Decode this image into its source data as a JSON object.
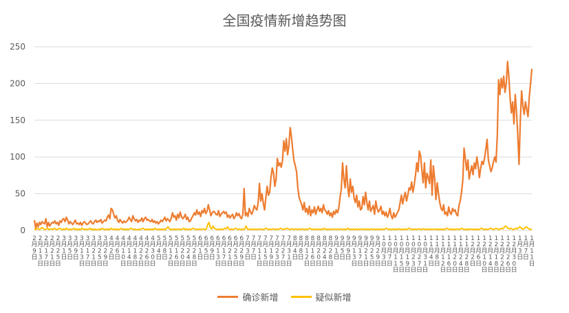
{
  "chart_data": {
    "type": "line",
    "title": "全国疫情新增趋势图",
    "xlabel": "",
    "ylabel": "",
    "ylim": [
      0,
      250
    ],
    "yticks": [
      0,
      50,
      100,
      150,
      200,
      250
    ],
    "grid": true,
    "legend_position": "bottom",
    "x_tick_labels": [
      "2月9日",
      "2月13日",
      "2月17日",
      "2月21日",
      "2月25日",
      "3月1日",
      "3月5日",
      "3月9日",
      "3月13日",
      "3月17日",
      "3月21日",
      "3月25日",
      "3月29日",
      "4月2日",
      "4月6日",
      "4月10日",
      "4月14日",
      "4月18日",
      "4月22日",
      "4月26日",
      "4月30日",
      "5月4日",
      "5月8日",
      "5月12日",
      "5月16日",
      "5月20日",
      "5月24日",
      "5月28日",
      "6月1日",
      "6月5日",
      "6月9日",
      "6月13日",
      "6月17日",
      "6月21日",
      "6月25日",
      "6月29日",
      "7月3日",
      "7月7日",
      "7月11日",
      "7月15日",
      "7月19日",
      "7月23日",
      "7月27日",
      "7月31日",
      "8月4日",
      "8月8日",
      "8月12日",
      "8月16日",
      "8月20日",
      "8月24日",
      "8月28日",
      "9月1日",
      "9月5日",
      "9月9日",
      "9月13日",
      "9月17日",
      "9月21日",
      "9月25日",
      "9月29日",
      "10月3日",
      "10月7日",
      "10月11日",
      "10月15日",
      "10月19日",
      "10月23日",
      "10月27日",
      "10月31日",
      "11月4日",
      "11月8日",
      "11月12日",
      "11月16日",
      "11月20日",
      "11月24日",
      "11月28日",
      "12月2日",
      "12月6日",
      "12月10日",
      "12月14日",
      "12月18日",
      "12月22日",
      "12月26日",
      "12月30日",
      "1月3日",
      "1月7日",
      "1月11日"
    ],
    "series": [
      {
        "name": "确诊新增",
        "color": "#ED7D31",
        "values": [
          14,
          3,
          10,
          5,
          11,
          8,
          12,
          10,
          9,
          16,
          5,
          11,
          6,
          9,
          11,
          10,
          13,
          9,
          11,
          7,
          13,
          11,
          15,
          16,
          12,
          18,
          14,
          9,
          12,
          10,
          8,
          11,
          14,
          9,
          10,
          8,
          11,
          7,
          10,
          12,
          10,
          8,
          9,
          11,
          13,
          10,
          9,
          12,
          14,
          11,
          13,
          12,
          15,
          10,
          12,
          14,
          13,
          18,
          21,
          16,
          30,
          28,
          22,
          17,
          20,
          14,
          11,
          15,
          12,
          10,
          13,
          11,
          12,
          14,
          18,
          15,
          12,
          20,
          16,
          13,
          15,
          11,
          14,
          13,
          17,
          12,
          16,
          18,
          14,
          15,
          13,
          12,
          15,
          11,
          13,
          10,
          12,
          9,
          11,
          14,
          12,
          15,
          18,
          13,
          16,
          14,
          12,
          17,
          24,
          18,
          20,
          14,
          22,
          17,
          25,
          19,
          16,
          18,
          22,
          15,
          18,
          12,
          13,
          17,
          20,
          24,
          21,
          28,
          22,
          25,
          19,
          27,
          24,
          30,
          23,
          26,
          35,
          28,
          20,
          24,
          26,
          25,
          22,
          21,
          27,
          19,
          22,
          24,
          26,
          23,
          25,
          18,
          21,
          17,
          20,
          22,
          16,
          19,
          24,
          20,
          23,
          18,
          16,
          22,
          57,
          20,
          24,
          19,
          30,
          25,
          22,
          27,
          34,
          30,
          28,
          38,
          64,
          40,
          50,
          37,
          28,
          45,
          60,
          48,
          52,
          72,
          85,
          78,
          60,
          70,
          98,
          88,
          92,
          86,
          95,
          122,
          108,
          125,
          103,
          115,
          140,
          128,
          110,
          95,
          88,
          80,
          58,
          45,
          40,
          35,
          28,
          38,
          25,
          30,
          22,
          33,
          20,
          28,
          24,
          32,
          22,
          28,
          33,
          26,
          30,
          24,
          35,
          28,
          26,
          22,
          27,
          20,
          24,
          18,
          26,
          22,
          28,
          24,
          30,
          45,
          56,
          92,
          70,
          58,
          88,
          60,
          46,
          70,
          52,
          60,
          44,
          38,
          48,
          32,
          40,
          28,
          30,
          46,
          35,
          52,
          38,
          28,
          40,
          26,
          30,
          34,
          22,
          40,
          30,
          25,
          28,
          33,
          22,
          26,
          20,
          25,
          18,
          22,
          30,
          20,
          16,
          24,
          18,
          21,
          25,
          28,
          38,
          48,
          36,
          45,
          52,
          40,
          48,
          58,
          55,
          66,
          52,
          62,
          75,
          92,
          80,
          108,
          102,
          82,
          65,
          92,
          58,
          78,
          72,
          64,
          96,
          48,
          88,
          70,
          42,
          65,
          50,
          38,
          30,
          27,
          35,
          22,
          25,
          20,
          32,
          24,
          22,
          30,
          26,
          28,
          22,
          20,
          34,
          40,
          52,
          68,
          112,
          98,
          82,
          96,
          70,
          80,
          88,
          76,
          92,
          84,
          100,
          88,
          72,
          85,
          94,
          90,
          98,
          110,
          124,
          96,
          88,
          80,
          85,
          94,
          100,
          93,
          130,
          205,
          185,
          207,
          194,
          210,
          188,
          200,
          230,
          210,
          180,
          160,
          175,
          145,
          185,
          162,
          130,
          90,
          150,
          190,
          170,
          158,
          175,
          165,
          155,
          182,
          200,
          220
        ]
      },
      {
        "name": "疑似新增",
        "color": "#FFC000",
        "values": [
          2,
          1,
          3,
          2,
          1,
          3,
          4,
          2,
          1,
          2,
          3,
          1,
          2,
          2,
          1,
          3,
          2,
          1,
          2,
          3,
          2,
          1,
          2,
          1,
          3,
          2,
          1,
          2,
          1,
          2,
          3,
          1,
          2,
          1,
          2,
          1,
          3,
          2,
          1,
          2,
          1,
          2,
          3,
          1,
          2,
          1,
          2,
          1,
          1,
          2,
          1,
          3,
          2,
          1,
          2,
          1,
          2,
          1,
          3,
          2,
          1,
          2,
          1,
          2,
          1,
          2,
          3,
          1,
          2,
          1,
          2,
          1,
          2,
          3,
          2,
          1,
          2,
          1,
          1,
          2,
          1,
          2,
          3,
          2,
          1,
          2,
          1,
          2,
          1,
          2,
          1,
          3,
          2,
          1,
          2,
          1,
          2,
          1,
          2,
          1,
          3,
          5,
          2,
          1,
          2,
          1,
          2,
          1,
          2,
          1,
          2,
          1,
          2,
          3,
          1,
          2,
          1,
          2,
          1,
          2,
          3,
          2,
          1,
          2,
          1,
          2,
          1,
          2,
          2,
          1,
          2,
          8,
          11,
          4,
          2,
          6,
          3,
          2,
          1,
          2,
          1,
          2,
          1,
          2,
          3,
          2,
          5,
          2,
          1,
          2,
          1,
          2,
          3,
          2,
          1,
          2,
          1,
          2,
          1,
          2,
          6,
          2,
          1,
          2,
          1,
          2,
          1,
          2,
          1,
          2,
          2,
          1,
          2,
          1,
          2,
          3,
          2,
          1,
          2,
          1,
          2,
          2,
          1,
          2,
          1,
          2,
          3,
          2,
          1,
          2,
          2,
          3,
          2,
          1,
          2,
          2,
          1,
          2,
          2,
          1,
          2,
          1,
          2,
          2,
          1,
          2,
          1,
          2,
          3,
          2,
          1,
          2,
          1,
          2,
          1,
          2,
          1,
          2,
          1,
          3,
          2,
          1,
          2,
          1,
          2,
          1,
          2,
          2,
          1,
          2,
          1,
          2,
          2,
          1,
          2,
          1,
          2,
          3,
          1,
          2,
          1,
          2,
          1,
          2,
          1,
          2,
          1,
          2,
          2,
          1,
          2,
          1,
          2,
          1,
          2,
          2,
          1,
          2,
          1,
          2,
          1,
          2,
          1,
          2,
          1,
          2,
          3,
          2,
          1,
          2,
          1,
          2,
          1,
          2,
          1,
          2,
          2,
          1,
          2,
          1,
          2,
          1,
          2,
          3,
          2,
          1,
          2,
          1,
          2,
          1,
          2,
          2,
          1,
          2,
          2,
          1,
          2,
          1,
          2,
          1,
          2,
          1,
          2,
          2,
          1,
          2,
          1,
          2,
          1,
          2,
          1,
          2,
          3,
          2,
          1,
          2,
          1,
          2,
          1,
          2,
          2,
          1,
          2,
          3,
          2,
          1,
          2,
          1,
          2,
          1,
          2,
          2,
          1,
          2,
          1,
          2,
          1,
          2,
          3,
          2,
          1,
          2,
          1,
          2,
          2,
          3,
          2,
          1,
          2,
          3,
          2,
          1,
          2,
          3,
          2,
          4,
          6,
          5,
          3,
          2,
          3,
          2,
          1,
          2,
          3,
          2,
          4,
          5,
          3,
          2,
          2,
          4,
          5,
          3,
          2,
          1,
          2
        ]
      }
    ]
  }
}
